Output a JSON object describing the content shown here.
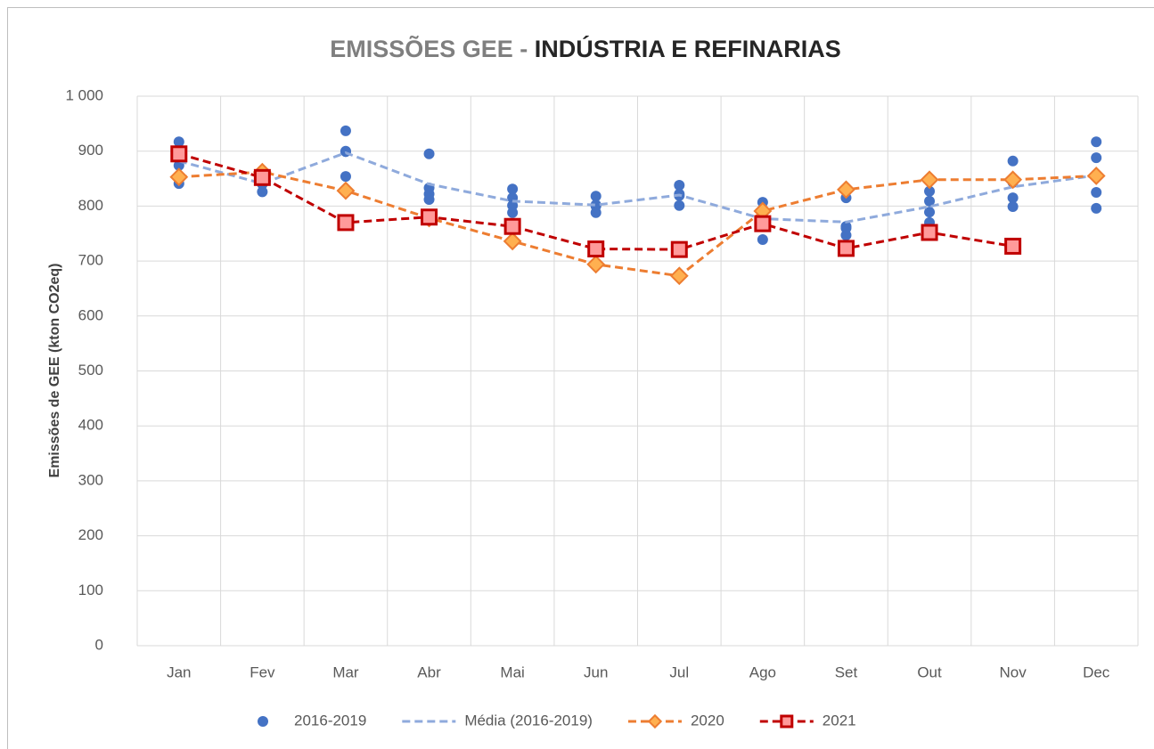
{
  "chart_data": {
    "type": "line",
    "title": [
      "EMISSÕES GEE -",
      "INDÚSTRIA E REFINARIAS"
    ],
    "y_label": "Emissões de GEE (kton CO2eq)",
    "categories": [
      "Jan",
      "Fev",
      "Mar",
      "Abr",
      "Mai",
      "Jun",
      "Jul",
      "Ago",
      "Set",
      "Out",
      "Nov",
      "Dec"
    ],
    "series": [
      {
        "name": "2016-2019",
        "color": "#4472c4",
        "mode": "markers",
        "marker": "circle",
        "values": [
          [
            917,
            874,
            841,
            895
          ],
          [
            848,
            840,
            826,
            850
          ],
          [
            937,
            899,
            854,
            900
          ],
          [
            895,
            833,
            812,
            822
          ],
          [
            831,
            815,
            801,
            788
          ],
          [
            818,
            802,
            788,
            800
          ],
          [
            838,
            822,
            801,
            819
          ],
          [
            807,
            786,
            778,
            739
          ],
          [
            815,
            763,
            747,
            760
          ],
          [
            827,
            809,
            789,
            770
          ],
          [
            882,
            843,
            815,
            799
          ],
          [
            917,
            888,
            825,
            796
          ]
        ]
      },
      {
        "name": "Média (2016-2019)",
        "color": "#8faadc",
        "mode": "lines",
        "dashed": true,
        "values": [
          882,
          841,
          897,
          840,
          809,
          802,
          820,
          777,
          771,
          799,
          835,
          856
        ]
      },
      {
        "name": "2020",
        "color": "#ed7d31",
        "marker_fill": "#ffb050",
        "mode": "lines+markers",
        "marker": "diamond",
        "dashed": true,
        "values": [
          853,
          862,
          828,
          778,
          736,
          694,
          673,
          791,
          830,
          848,
          848,
          855
        ]
      },
      {
        "name": "2021",
        "color": "#c00000",
        "marker_fill": "#ff9a9a",
        "mode": "lines+markers",
        "marker": "square",
        "dashed": true,
        "values": [
          895,
          852,
          770,
          780,
          763,
          722,
          721,
          768,
          723,
          752,
          727,
          null
        ]
      }
    ],
    "ylim": [
      0,
      1000
    ],
    "yticks": [
      0,
      100,
      200,
      300,
      400,
      500,
      600,
      700,
      800,
      900,
      {
        "value": 1000,
        "label": "1 000"
      }
    ],
    "grid": true,
    "legend": "bottom"
  }
}
